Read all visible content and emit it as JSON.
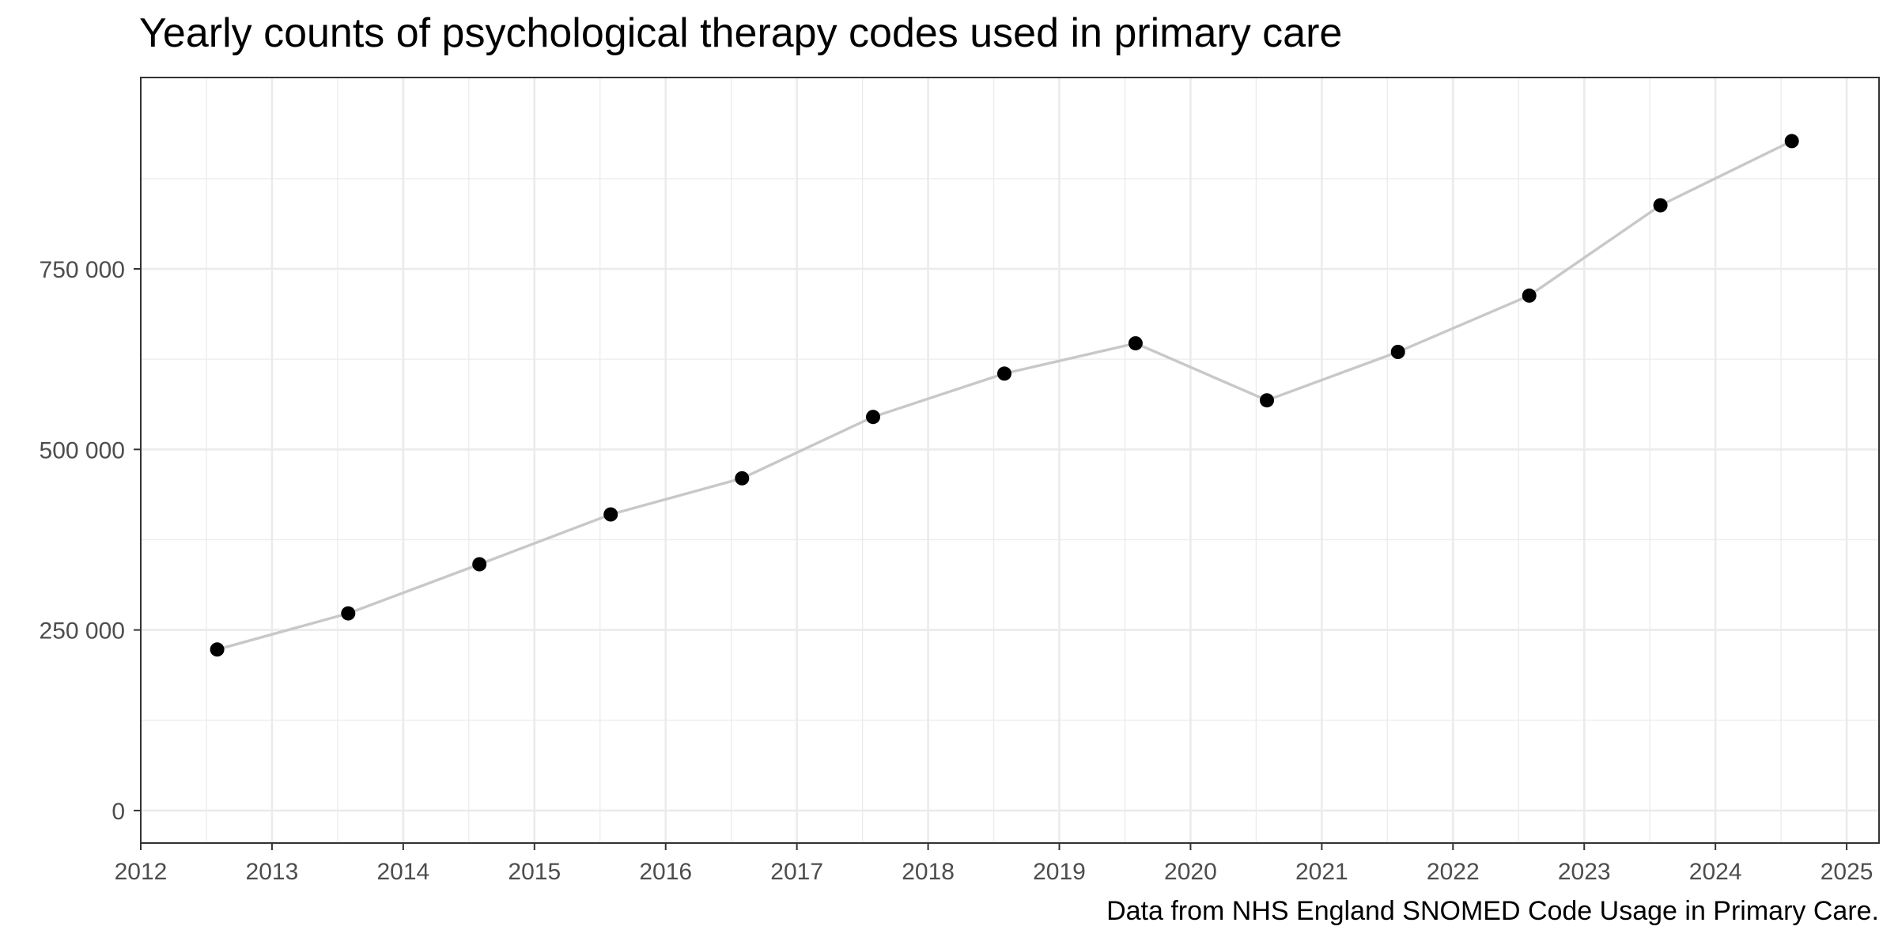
{
  "chart_data": {
    "type": "line",
    "title": "Yearly counts of psychological therapy codes used in primary care",
    "caption": "Data from NHS England SNOMED Code Usage in Primary Care.",
    "xlabel": "",
    "ylabel": "",
    "x_ticks": [
      "2012",
      "2013",
      "2014",
      "2015",
      "2016",
      "2017",
      "2018",
      "2019",
      "2020",
      "2021",
      "2022",
      "2023",
      "2024",
      "2025"
    ],
    "y_ticks": [
      "0",
      "250 000",
      "500 000",
      "750 000"
    ],
    "xlim": [
      "2012-01-01",
      "2025-04-01"
    ],
    "ylim": [
      -45000,
      1015000
    ],
    "series": [
      {
        "x": [
          "2012-08-01",
          "2013-08-01",
          "2014-08-01",
          "2015-08-01",
          "2016-08-01",
          "2017-08-01",
          "2018-08-01",
          "2019-08-01",
          "2020-08-01",
          "2021-08-01",
          "2022-08-01",
          "2023-08-01",
          "2024-08-01"
        ],
        "y": [
          223000,
          273000,
          341000,
          410000,
          460000,
          545000,
          605000,
          647000,
          568000,
          635000,
          713000,
          838000,
          927000
        ]
      }
    ],
    "grid": true,
    "legend": "none",
    "colors": {
      "line": "#c8c8c8",
      "point": "#000000",
      "grid": "#ebebeb",
      "panel_border": "#333333",
      "tick_label": "#4d4d4d"
    }
  }
}
